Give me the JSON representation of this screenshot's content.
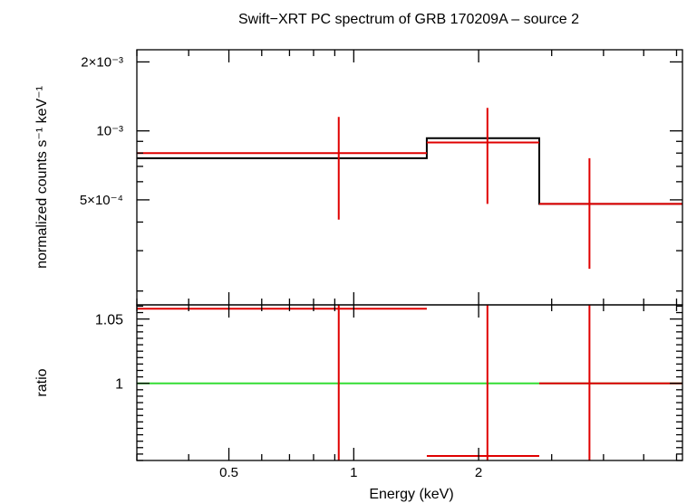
{
  "chart_data": {
    "title": "Swift−XRT PC spectrum of GRB 170209A – source 2",
    "xlabel": "Energy (keV)",
    "x_scale": "log",
    "x_range": [
      0.3,
      6.2
    ],
    "x_ticks": [
      {
        "value": 0.5,
        "label": "0.5"
      },
      {
        "value": 1,
        "label": "1"
      },
      {
        "value": 2,
        "label": "2"
      }
    ],
    "panels": [
      {
        "type": "line",
        "ylabel": "normalized counts s⁻¹ keV⁻¹",
        "y_scale": "log",
        "y_range": [
          0.000174,
          0.00226
        ],
        "y_ticks": [
          {
            "value": 0.002,
            "label": "2×10⁻³"
          },
          {
            "value": 0.001,
            "label": "10⁻³"
          },
          {
            "value": 0.0005,
            "label": "5×10⁻⁴"
          }
        ],
        "model": {
          "color": "#000000",
          "steps": [
            {
              "x0": 0.3,
              "x1": 1.5,
              "y": 0.00076
            },
            {
              "x0": 1.5,
              "x1": 2.8,
              "y": 0.00093
            },
            {
              "x0": 2.8,
              "x1": 6.2,
              "y": 0.00048
            }
          ]
        },
        "data": {
          "color": "#e00000",
          "points": [
            {
              "x": 0.92,
              "x0": 0.3,
              "x1": 1.5,
              "y": 0.0008,
              "ylo": 0.00041,
              "yhi": 0.00115
            },
            {
              "x": 2.1,
              "x0": 1.5,
              "x1": 2.8,
              "y": 0.00089,
              "ylo": 0.00048,
              "yhi": 0.00126
            },
            {
              "x": 3.7,
              "x0": 2.8,
              "x1": 6.2,
              "y": 0.00048,
              "ylo": 0.00025,
              "yhi": 0.00076
            }
          ]
        }
      },
      {
        "type": "line",
        "ylabel": "ratio",
        "y_scale": "linear",
        "y_range": [
          0.94,
          1.061
        ],
        "y_ticks": [
          {
            "value": 1.05,
            "label": "1.05"
          },
          {
            "value": 1,
            "label": "1"
          }
        ],
        "reference_line": {
          "y": 1,
          "color": "#33dd33"
        },
        "data": {
          "color": "#e00000",
          "points": [
            {
              "x": 0.92,
              "x0": 0.3,
              "x1": 1.5,
              "y": 1.058,
              "ylo": 0.94,
              "yhi": 1.061
            },
            {
              "x": 2.1,
              "x0": 1.5,
              "x1": 2.8,
              "y": 0.9435,
              "ylo": 0.94,
              "yhi": 1.061
            },
            {
              "x": 3.7,
              "x0": 2.8,
              "x1": 6.2,
              "y": 1.0,
              "ylo": 0.94,
              "yhi": 1.061
            }
          ]
        }
      }
    ]
  }
}
